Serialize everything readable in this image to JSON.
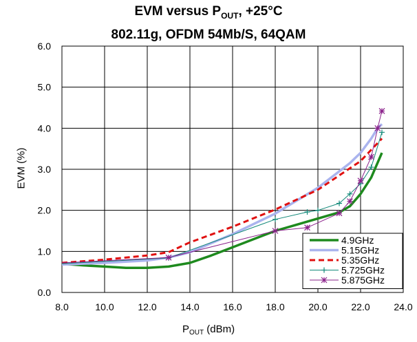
{
  "title": {
    "line1_main": "EVM versus P",
    "line1_sub": "OUT",
    "line1_tail": ", +25°C",
    "line2": "802.11g, OFDM 54Mb/S, 64QAM"
  },
  "axes": {
    "ylabel": "EVM (%)",
    "xlabel_main": "P",
    "xlabel_sub": "OUT",
    "xlabel_tail": " (dBm)"
  },
  "chart_data": {
    "type": "line",
    "title": "EVM versus POUT, +25°C / 802.11g, OFDM 54Mb/S, 64QAM",
    "xlabel": "POUT (dBm)",
    "ylabel": "EVM (%)",
    "xlim": [
      8.0,
      24.0
    ],
    "ylim": [
      0.0,
      6.0
    ],
    "xticks": [
      "8.0",
      "10.0",
      "12.0",
      "14.0",
      "16.0",
      "18.0",
      "20.0",
      "22.0",
      "24.0"
    ],
    "yticks": [
      "0.0",
      "1.0",
      "2.0",
      "3.0",
      "4.0",
      "5.0",
      "6.0"
    ],
    "grid": true,
    "legend_position": "bottom-right",
    "series": [
      {
        "name": "4.9GHz",
        "color": "#1e8a1e",
        "style": "solid-thick",
        "marker": "none",
        "x": [
          8.0,
          9.0,
          10.0,
          11.0,
          12.0,
          13.0,
          14.0,
          15.0,
          16.0,
          17.0,
          18.0,
          19.0,
          20.0,
          21.0,
          21.5,
          22.0,
          22.5,
          23.0
        ],
        "y": [
          0.7,
          0.66,
          0.63,
          0.6,
          0.6,
          0.63,
          0.72,
          0.9,
          1.1,
          1.3,
          1.5,
          1.65,
          1.8,
          1.95,
          2.1,
          2.4,
          2.8,
          3.4
        ]
      },
      {
        "name": "5.15GHz",
        "color": "#aab4ee",
        "style": "solid-thick",
        "marker": "none",
        "x": [
          8.0,
          10.0,
          12.0,
          13.0,
          14.0,
          16.0,
          18.0,
          20.0,
          21.0,
          21.5,
          22.0,
          22.5,
          22.8,
          23.0
        ],
        "y": [
          0.68,
          0.72,
          0.78,
          0.85,
          0.98,
          1.42,
          1.92,
          2.55,
          2.95,
          3.15,
          3.4,
          3.75,
          4.0,
          4.1
        ]
      },
      {
        "name": "5.35GHz",
        "color": "#e01010",
        "style": "dashed",
        "marker": "none",
        "x": [
          8.0,
          10.0,
          12.0,
          13.0,
          14.0,
          16.0,
          18.0,
          20.0,
          21.0,
          22.0,
          23.0
        ],
        "y": [
          0.72,
          0.8,
          0.9,
          0.98,
          1.22,
          1.6,
          2.02,
          2.5,
          2.85,
          3.2,
          3.75
        ]
      },
      {
        "name": "5.725GHz",
        "color": "#108878",
        "style": "solid-thin",
        "marker": "plus",
        "x": [
          8.0,
          13.0,
          18.0,
          19.5,
          20.0,
          21.0,
          21.5,
          22.0,
          22.5,
          23.0
        ],
        "y": [
          0.7,
          0.84,
          1.78,
          1.96,
          2.0,
          2.17,
          2.4,
          2.65,
          3.05,
          3.9
        ]
      },
      {
        "name": "5.875GHz",
        "color": "#8a208a",
        "style": "solid-thin",
        "marker": "star",
        "x": [
          8.0,
          13.0,
          18.0,
          19.5,
          21.0,
          21.5,
          22.0,
          22.5,
          22.8,
          23.0
        ],
        "y": [
          0.72,
          0.85,
          1.5,
          1.58,
          1.93,
          2.22,
          2.72,
          3.3,
          4.0,
          4.42
        ]
      }
    ]
  }
}
